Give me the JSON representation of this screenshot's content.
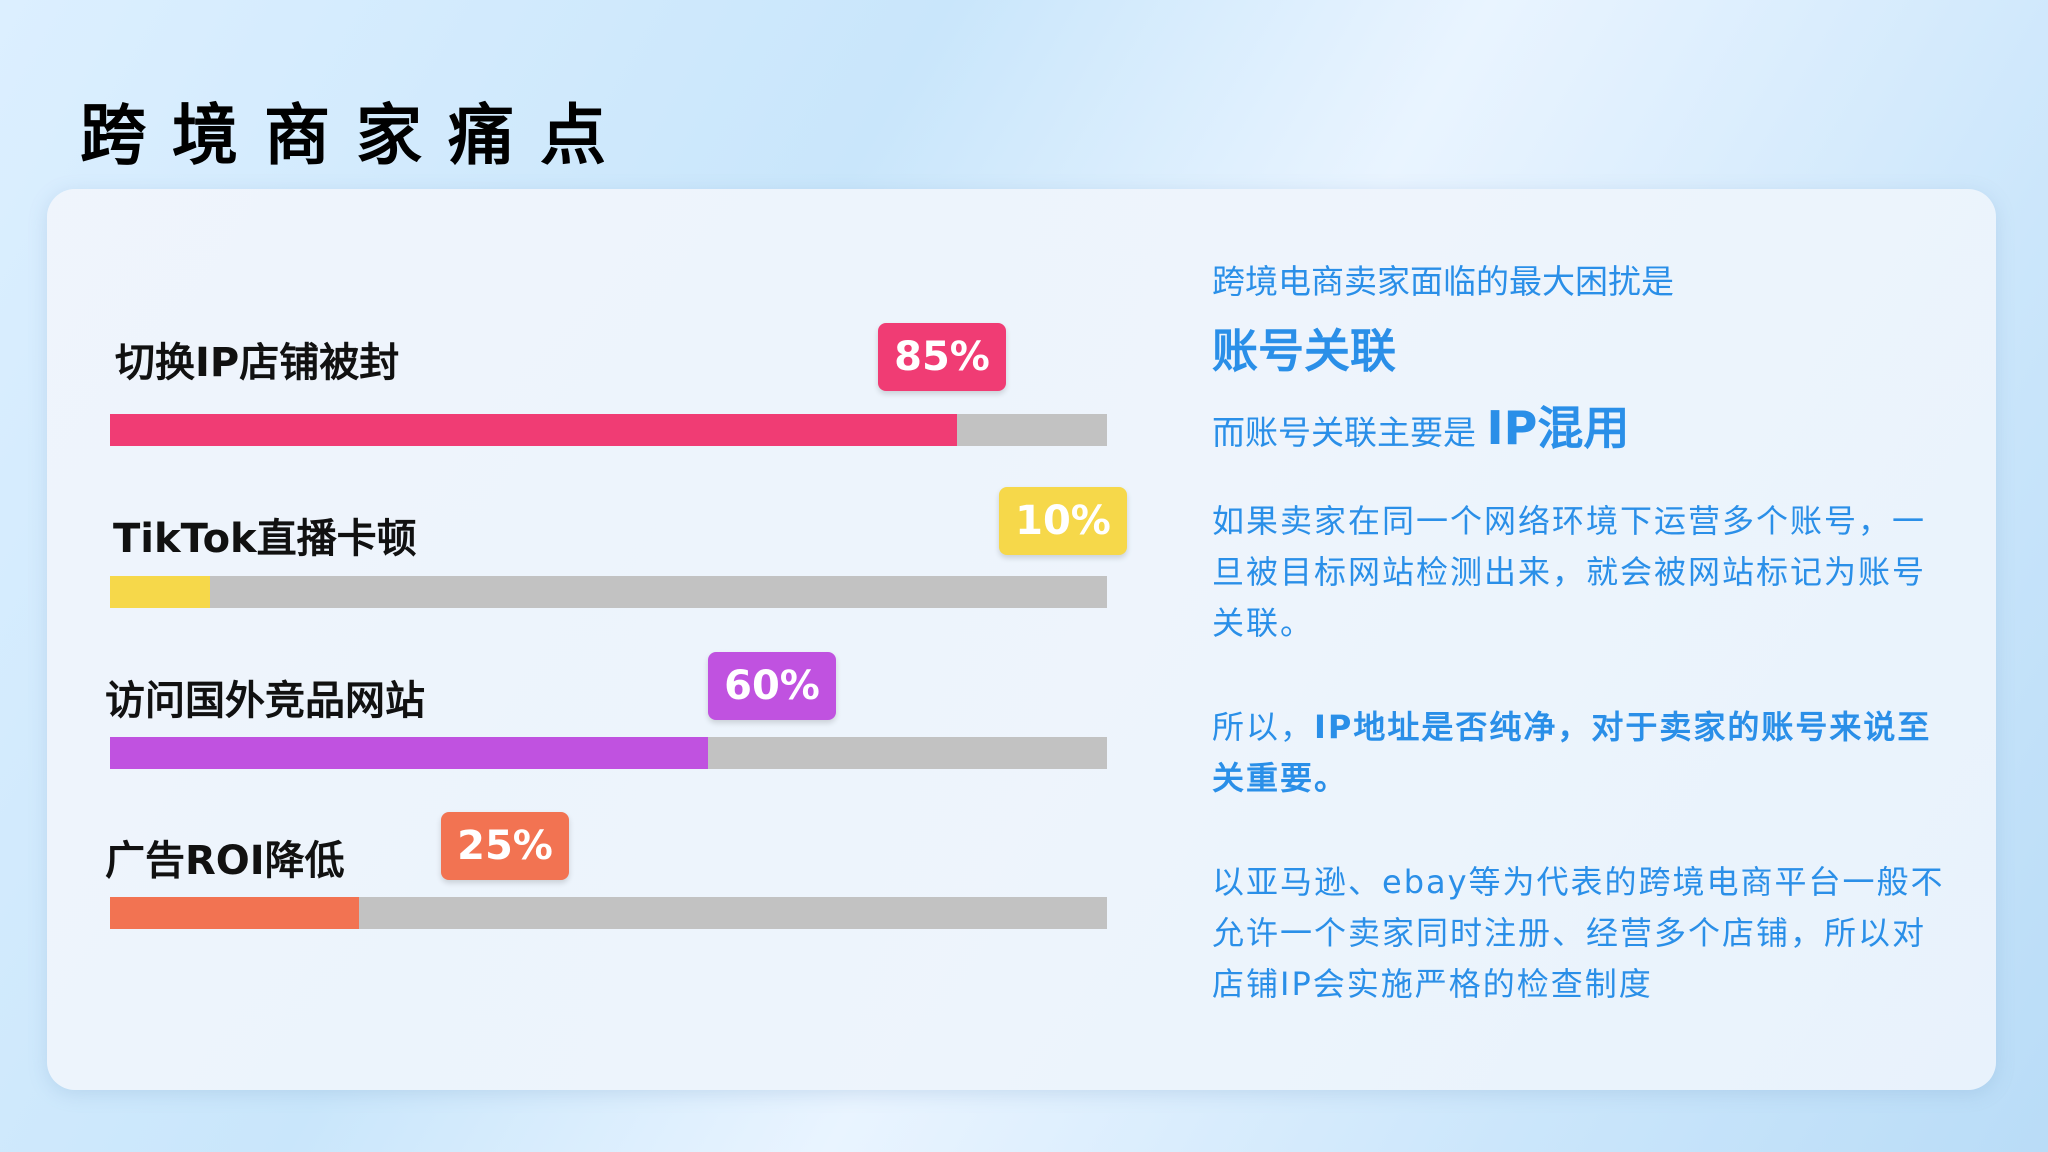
{
  "title": "跨境商家痛点",
  "bars": [
    {
      "label": "切换IP店铺被封",
      "value": 85,
      "value_text": "85%",
      "color": "#f03c74"
    },
    {
      "label": "TikTok直播卡顿",
      "value": 10,
      "value_text": "10%",
      "color": "#f6d84a"
    },
    {
      "label": "访问国外竞品网站",
      "value": 60,
      "value_text": "60%",
      "color": "#c052e0"
    },
    {
      "label": "广告ROI降低",
      "value": 25,
      "value_text": "25%",
      "color": "#f27352"
    }
  ],
  "right": {
    "line1": "跨境电商卖家面临的最大困扰是",
    "line2": "账号关联",
    "line3_a": "而账号关联主要是 ",
    "line3_b": "IP混用",
    "para1": "如果卖家在同一个网络环境下运营多个账号，一旦被目标网站检测出来，就会被网站标记为账号关联。",
    "para2_a": "所以，",
    "para2_b": "IP地址是否纯净，对于卖家的账号来说至关重要。",
    "para3": "以亚马逊、ebay等为代表的跨境电商平台一般不允许一个卖家同时注册、经营多个店铺，所以对店铺IP会实施严格的检查制度"
  }
}
